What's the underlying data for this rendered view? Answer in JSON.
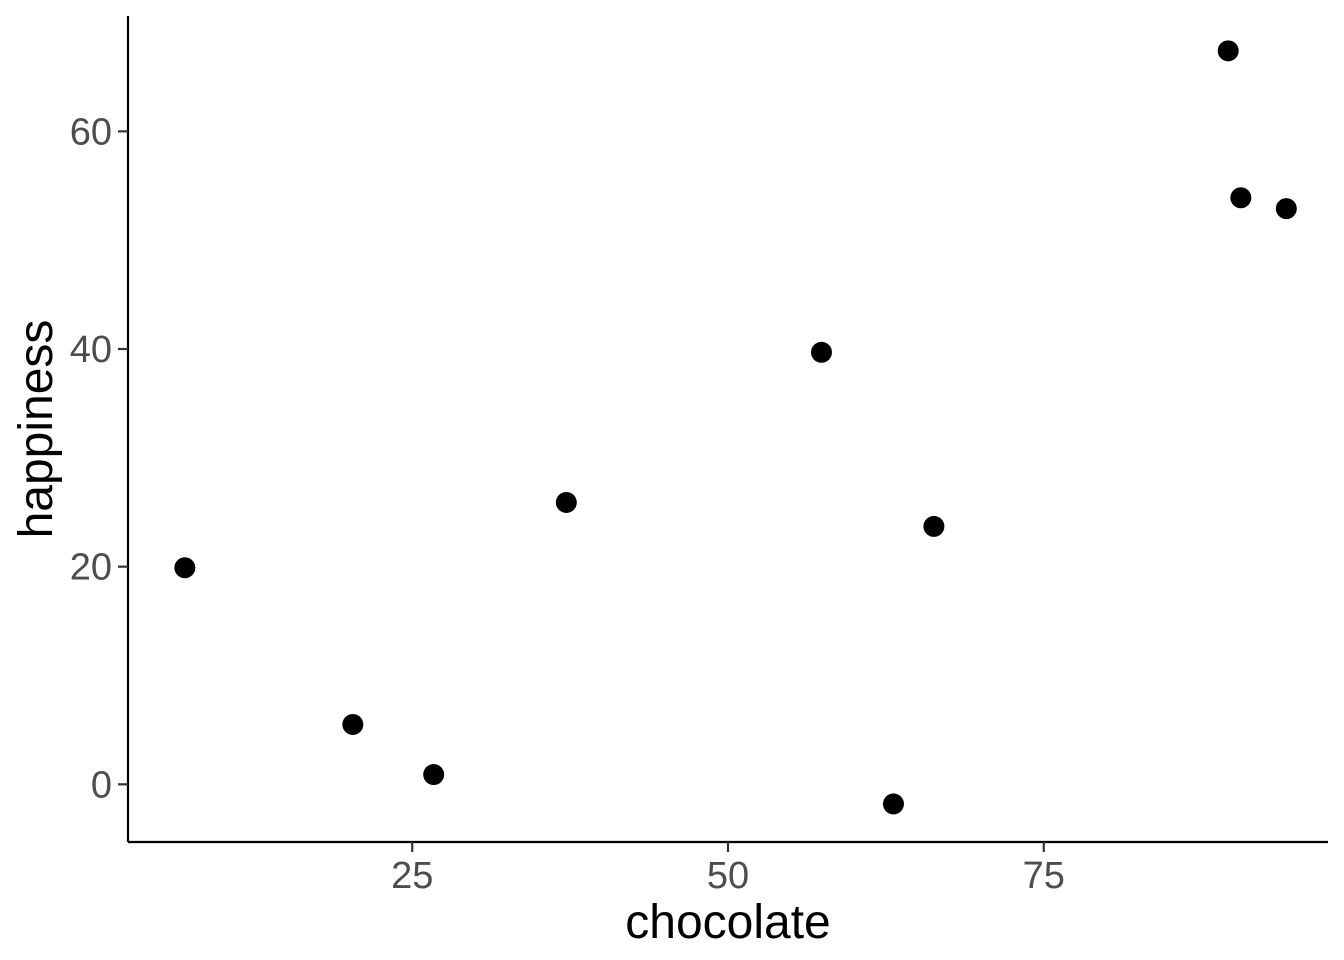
{
  "chart_data": {
    "type": "scatter",
    "title": "",
    "xlabel": "chocolate",
    "ylabel": "happiness",
    "xlim": [
      2.5,
      97.5
    ],
    "ylim": [
      -5.3,
      70.6
    ],
    "x_ticks": [
      25,
      50,
      75
    ],
    "y_ticks": [
      0,
      20,
      40,
      60
    ],
    "x_tick_labels": [
      "25",
      "50",
      "75"
    ],
    "y_tick_labels": [
      "0",
      "20",
      "40",
      "60"
    ],
    "grid": false,
    "point_color": "#000000",
    "points": [
      {
        "x": 7.0,
        "y": 19.9
      },
      {
        "x": 20.3,
        "y": 5.5
      },
      {
        "x": 26.7,
        "y": 0.9
      },
      {
        "x": 37.2,
        "y": 25.9
      },
      {
        "x": 57.4,
        "y": 39.7
      },
      {
        "x": 63.1,
        "y": -1.8
      },
      {
        "x": 66.3,
        "y": 23.7
      },
      {
        "x": 89.6,
        "y": 67.4
      },
      {
        "x": 90.6,
        "y": 53.9
      },
      {
        "x": 94.2,
        "y": 52.9
      }
    ]
  }
}
